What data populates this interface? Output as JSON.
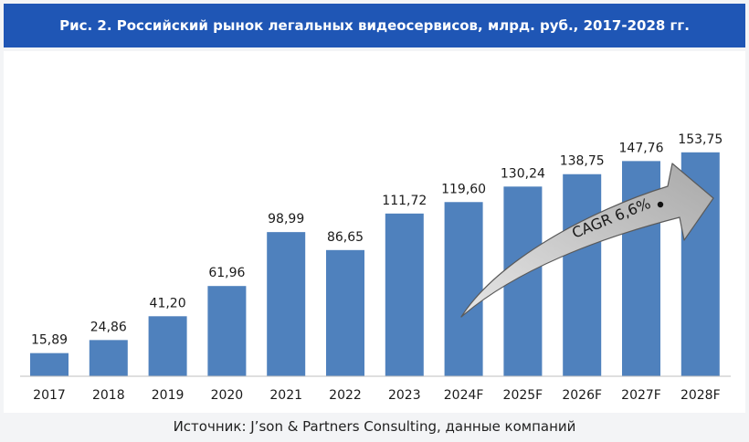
{
  "header": {
    "title": "Рис. 2. Российский рынок легальных видеосервисов, млрд. руб., 2017-2028 гг."
  },
  "footer": {
    "source": "Источник: J’son & Partners Consulting, данные компаний"
  },
  "colors": {
    "header_bg": "#1f56b5",
    "bar": "#4f81bd",
    "arrow": "#c8c8c8"
  },
  "chart_data": {
    "type": "bar",
    "categories": [
      "2017",
      "2018",
      "2019",
      "2020",
      "2021",
      "2022",
      "2023",
      "2024F",
      "2025F",
      "2026F",
      "2027F",
      "2028F"
    ],
    "values": [
      15.89,
      24.86,
      41.2,
      61.96,
      98.99,
      86.65,
      111.72,
      119.6,
      130.24,
      138.75,
      147.76,
      153.75
    ],
    "value_labels": [
      "15,89",
      "24,86",
      "41,20",
      "61,96",
      "98,99",
      "86,65",
      "111,72",
      "119,60",
      "130,24",
      "138,75",
      "147,76",
      "153,75"
    ],
    "annotation": "CAGR 6,6%",
    "grid": false,
    "legend": "none"
  }
}
